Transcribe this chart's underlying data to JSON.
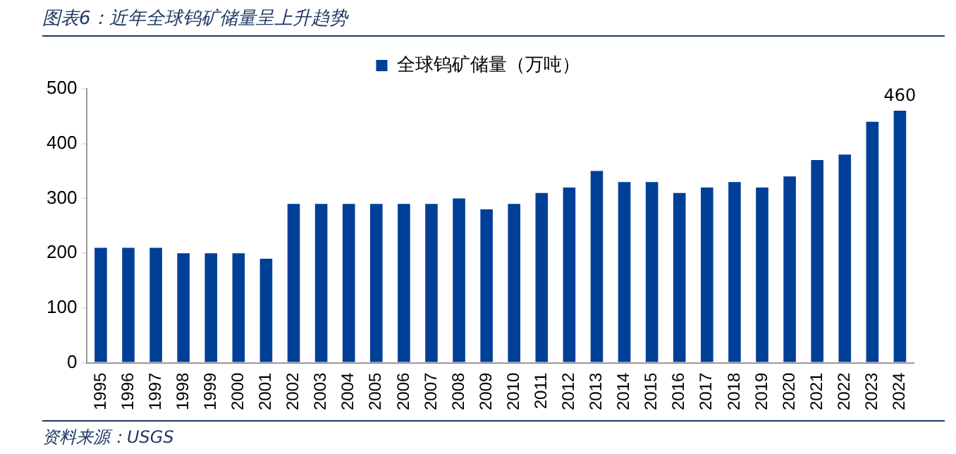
{
  "chart_data": {
    "type": "bar",
    "title": "图表6：近年全球钨矿储量呈上升趋势",
    "categories": [
      "1995",
      "1996",
      "1997",
      "1998",
      "1999",
      "2000",
      "2001",
      "2002",
      "2003",
      "2004",
      "2005",
      "2006",
      "2007",
      "2008",
      "2009",
      "2010",
      "2011",
      "2012",
      "2013",
      "2014",
      "2015",
      "2016",
      "2017",
      "2018",
      "2019",
      "2020",
      "2021",
      "2022",
      "2023",
      "2024"
    ],
    "series": [
      {
        "name": "全球钨矿储量（万吨）",
        "color": "#003f97",
        "values": [
          210,
          210,
          210,
          200,
          200,
          200,
          190,
          290,
          290,
          290,
          290,
          290,
          290,
          300,
          280,
          290,
          310,
          320,
          350,
          330,
          330,
          310,
          320,
          330,
          320,
          340,
          370,
          380,
          440,
          460
        ],
        "value_labels": [
          null,
          null,
          null,
          null,
          null,
          null,
          null,
          null,
          null,
          null,
          null,
          null,
          null,
          null,
          null,
          null,
          null,
          null,
          null,
          null,
          null,
          null,
          null,
          null,
          null,
          null,
          null,
          null,
          null,
          "460"
        ]
      }
    ],
    "ylim": [
      0,
      500
    ],
    "yticks": [
      0,
      100,
      200,
      300,
      400,
      500
    ],
    "grid": false,
    "legend": "top",
    "annotations": [
      "资料来源：USGS"
    ]
  }
}
